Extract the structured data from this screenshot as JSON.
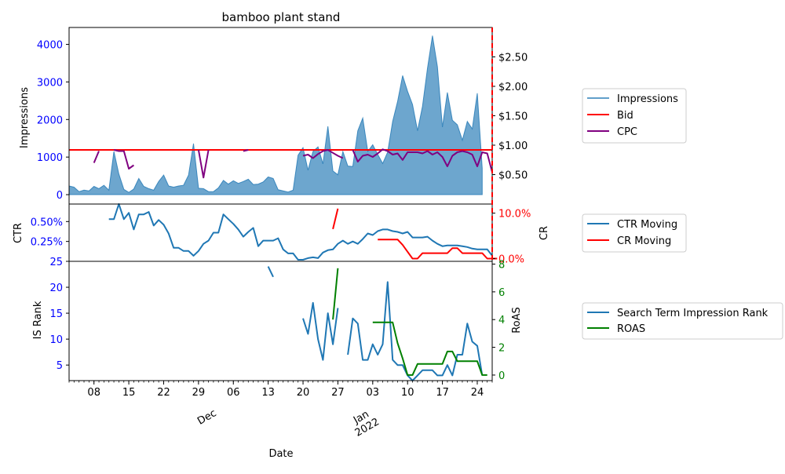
{
  "title": "bamboo plant stand",
  "colors": {
    "impressions": "#1f77b4",
    "bid": "#ff0000",
    "cpc": "#800080",
    "ctr": "#1f77b4",
    "cr": "#ff0000",
    "isrank": "#1f77b4",
    "roas": "#008000",
    "left_tick": "#0000ff",
    "cr_tick": "#ff0000",
    "roas_tick": "#008000"
  },
  "labels": {
    "impressions_axis": "Impressions",
    "ctr_axis": "CTR",
    "cr_axis": "CR",
    "isrank_axis": "IS Rank",
    "roas_axis": "RoAS",
    "x_axis": "Date"
  },
  "legends": {
    "top": [
      "Impressions",
      "Bid",
      "CPC"
    ],
    "middle": [
      "CTR Moving",
      "CR Moving"
    ],
    "bottom": [
      "Search Term Impression Rank",
      "ROAS"
    ]
  },
  "chart_data": {
    "type": "line",
    "x_range": [
      "2021-11-03",
      "2022-01-27"
    ],
    "x_ticks": [
      {
        "date": "2021-11-08",
        "label": "08"
      },
      {
        "date": "2021-11-15",
        "label": "15"
      },
      {
        "date": "2021-11-22",
        "label": "22"
      },
      {
        "date": "2021-11-29",
        "label": "29"
      },
      {
        "date": "2021-12-06",
        "label": "06"
      },
      {
        "date": "2021-12-13",
        "label": "13"
      },
      {
        "date": "2021-12-20",
        "label": "20"
      },
      {
        "date": "2021-12-27",
        "label": "27"
      },
      {
        "date": "2022-01-03",
        "label": "03"
      },
      {
        "date": "2022-01-10",
        "label": "10"
      },
      {
        "date": "2022-01-17",
        "label": "17"
      },
      {
        "date": "2022-01-24",
        "label": "24"
      }
    ],
    "month_labels": [
      {
        "date": "2021-12-01",
        "label": "Dec"
      },
      {
        "date": "2022-01-01",
        "label": "Jan\n2022"
      }
    ],
    "vline_date": "2022-01-27",
    "panels": {
      "top": {
        "ylim": [
          -250,
          4450
        ],
        "yticks": [
          0,
          1000,
          2000,
          3000,
          4000
        ],
        "y2lim": [
          0,
          3.0
        ],
        "y2ticks": [
          0.5,
          1.0,
          1.5,
          2.0,
          2.5
        ],
        "y2tick_labels": [
          "$0.50",
          "$1.00",
          "$1.50",
          "$2.00",
          "$2.50"
        ],
        "impressions": {
          "start": "2021-11-03",
          "values": [
            230,
            200,
            80,
            120,
            100,
            220,
            160,
            250,
            120,
            1150,
            550,
            140,
            60,
            150,
            430,
            220,
            160,
            120,
            350,
            520,
            230,
            200,
            230,
            250,
            520,
            1360,
            170,
            160,
            80,
            80,
            180,
            380,
            280,
            370,
            300,
            350,
            410,
            270,
            280,
            340,
            470,
            430,
            130,
            100,
            70,
            120,
            1050,
            1250,
            650,
            1150,
            1270,
            820,
            1820,
            630,
            530,
            1150,
            760,
            750,
            1700,
            2040,
            1150,
            1330,
            1070,
            830,
            1130,
            1950,
            2480,
            3170,
            2750,
            2400,
            1700,
            2350,
            3370,
            4230,
            3410,
            1800,
            2720,
            1980,
            1860,
            1450,
            1950,
            1750,
            2700,
            700
          ]
        },
        "bid": {
          "start": "2021-11-03",
          "end": "2022-01-27",
          "value": 0.92
        },
        "cpc": [
          {
            "start": "2021-11-08",
            "values": [
              0.7,
              0.9
            ]
          },
          {
            "start": "2021-11-12",
            "values": [
              0.92,
              0.9,
              0.9,
              0.6,
              0.66
            ]
          },
          {
            "start": "2021-11-29",
            "values": [
              0.92,
              0.45,
              0.92
            ]
          },
          {
            "start": "2021-12-08",
            "values": [
              0.9,
              0.92
            ]
          },
          {
            "start": "2021-12-20",
            "values": [
              0.82,
              0.84,
              0.78,
              0.85,
              0.9,
              0.92,
              0.87,
              0.82,
              0.78
            ]
          },
          {
            "start": "2021-12-30",
            "values": [
              0.92,
              0.72,
              0.82,
              0.84,
              0.8,
              0.86,
              0.93,
              0.9,
              0.84,
              0.86,
              0.75,
              0.88,
              0.88,
              0.88,
              0.86,
              0.9,
              0.84,
              0.88,
              0.8,
              0.64,
              0.82,
              0.88,
              0.9,
              0.88,
              0.84,
              0.64,
              0.88,
              0.86,
              0.54
            ]
          }
        ]
      },
      "middle": {
        "ylim": [
          0.0,
          0.72
        ],
        "yticks": [
          0.25,
          0.5
        ],
        "ytick_labels": [
          "0.25%",
          "0.50%"
        ],
        "y2lim": [
          -0.6,
          12.0
        ],
        "y2ticks": [
          0.0,
          10.0
        ],
        "y2tick_labels": [
          "0.0%",
          "10.0%"
        ],
        "ctr": {
          "start": "2021-11-11",
          "values": [
            0.53,
            0.53,
            0.72,
            0.53,
            0.61,
            0.4,
            0.59,
            0.59,
            0.62,
            0.45,
            0.52,
            0.46,
            0.35,
            0.17,
            0.17,
            0.13,
            0.13,
            0.07,
            0.13,
            0.22,
            0.26,
            0.36,
            0.36,
            0.59,
            0.53,
            0.47,
            0.4,
            0.31,
            0.37,
            0.42,
            0.19,
            0.26,
            0.26,
            0.26,
            0.29,
            0.15,
            0.1,
            0.1,
            0.02,
            0.02,
            0.04,
            0.05,
            0.04,
            0.11,
            0.14,
            0.15,
            0.22,
            0.26,
            0.22,
            0.25,
            0.22,
            0.28,
            0.35,
            0.33,
            0.38,
            0.4,
            0.4,
            0.38,
            0.37,
            0.35,
            0.37,
            0.3,
            0.3,
            0.3,
            0.31,
            0.26,
            0.22,
            0.19,
            0.2,
            0.2,
            0.2,
            0.19,
            0.18,
            0.16,
            0.15,
            0.15,
            0.15,
            0.07
          ]
        },
        "cr": [
          {
            "start": "2021-12-26",
            "values": [
              6.5,
              11.0
            ]
          },
          {
            "start": "2022-01-04",
            "values": [
              4.2,
              4.2,
              4.2,
              4.2,
              4.2,
              3.0,
              1.5,
              0.0,
              0.0,
              1.2,
              1.2,
              1.2,
              1.2,
              1.2,
              1.2,
              2.3,
              2.3,
              1.2,
              1.2,
              1.2,
              1.2,
              1.2,
              0.0,
              0.0,
              0.0
            ]
          }
        ]
      },
      "bottom": {
        "ylim": [
          2.0,
          25.0
        ],
        "yticks": [
          5,
          10,
          15,
          20,
          25
        ],
        "y2lim": [
          -0.4,
          8.2
        ],
        "y2ticks": [
          0,
          2,
          4,
          6,
          8
        ],
        "isrank": [
          {
            "start": "2021-12-13",
            "values": [
              24,
              22
            ]
          },
          {
            "start": "2021-12-20",
            "values": [
              14,
              11,
              17,
              10,
              6,
              15,
              9,
              16
            ]
          },
          {
            "start": "2021-12-29",
            "values": [
              7,
              14,
              13,
              6,
              6,
              9,
              7,
              9,
              21,
              6,
              5,
              5,
              3,
              2,
              3,
              4,
              4,
              4,
              3,
              3,
              5,
              3,
              7,
              7,
              13,
              9.5,
              8.7,
              3
            ]
          }
        ],
        "roas": [
          {
            "start": "2021-12-26",
            "values": [
              4.0,
              7.7
            ]
          },
          {
            "start": "2022-01-03",
            "values": [
              3.8,
              3.8,
              3.8,
              3.8,
              3.8,
              2.3,
              1.2,
              0.0,
              0.0,
              0.8,
              0.8,
              0.8,
              0.8,
              0.8,
              0.8,
              1.7,
              1.7,
              1.0,
              1.0,
              1.0,
              1.0,
              1.0,
              0.0,
              0.0
            ]
          }
        ]
      }
    }
  }
}
